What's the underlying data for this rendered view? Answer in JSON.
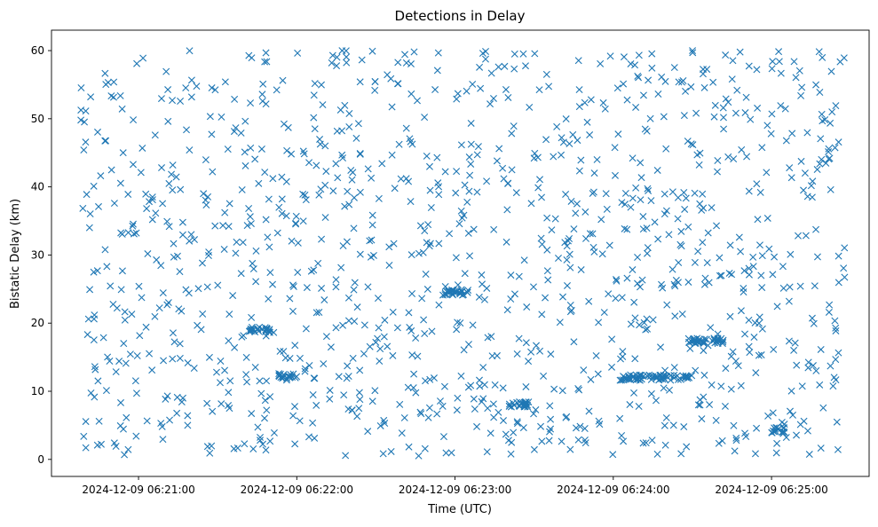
{
  "chart_data": {
    "type": "scatter",
    "title": "Detections in Delay",
    "xlabel": "Time (UTC)",
    "ylabel": "Bistatic Delay (km)",
    "marker": "x",
    "color": "#1f77b4",
    "grid": false,
    "legend": "none",
    "xlim": [
      "2024-12-09 06:20:27",
      "2024-12-09 06:25:37"
    ],
    "ylim": [
      -2.5,
      63
    ],
    "xticks": [
      "2024-12-09 06:21:00",
      "2024-12-09 06:22:00",
      "2024-12-09 06:23:00",
      "2024-12-09 06:24:00",
      "2024-12-09 06:25:00"
    ],
    "yticks": [
      0,
      10,
      20,
      30,
      40,
      50,
      60
    ],
    "time_range": [
      "2024-12-09 06:20:38",
      "2024-12-09 06:25:28"
    ],
    "delay_range": [
      0.5,
      60
    ],
    "point_count": 1400,
    "clusters": [
      {
        "start": "2024-12-09 06:21:42",
        "end": "2024-12-09 06:21:50",
        "delay": 19.0
      },
      {
        "start": "2024-12-09 06:21:53",
        "end": "2024-12-09 06:22:00",
        "delay": 12.2
      },
      {
        "start": "2024-12-09 06:24:28",
        "end": "2024-12-09 06:24:42",
        "delay": 17.4
      },
      {
        "start": "2024-12-09 06:24:02",
        "end": "2024-12-09 06:24:30",
        "delay": 12.0
      },
      {
        "start": "2024-12-09 06:25:00",
        "end": "2024-12-09 06:25:05",
        "delay": 4.3
      },
      {
        "start": "2024-12-09 06:22:55",
        "end": "2024-12-09 06:23:05",
        "delay": 24.5
      },
      {
        "start": "2024-12-09 06:23:20",
        "end": "2024-12-09 06:23:28",
        "delay": 8.1
      }
    ]
  }
}
